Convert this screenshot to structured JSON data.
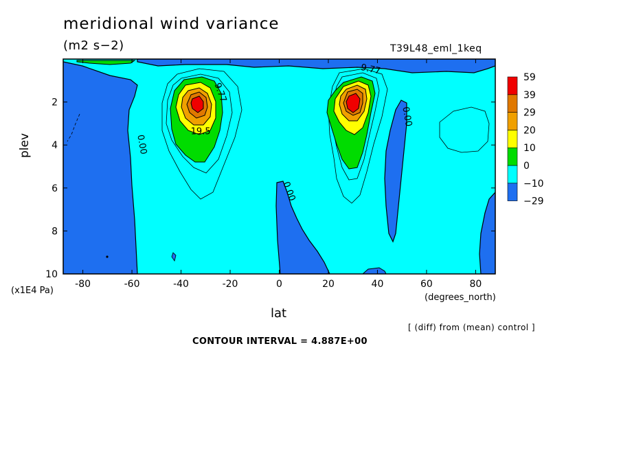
{
  "chart_data": {
    "type": "heatmap",
    "title": "meridional wind variance",
    "units": "(m2 s−2)",
    "run_label": "T39L48_eml_1keq",
    "xlabel": "lat",
    "x_unit_label": "(degrees_north)",
    "ylabel": "plev",
    "y_unit_label": "(x1E4 Pa)",
    "xlim": [
      -88,
      88
    ],
    "ylim": [
      10,
      0
    ],
    "x_ticks": [
      -80,
      -60,
      -40,
      -20,
      0,
      20,
      40,
      60,
      80
    ],
    "y_ticks": [
      2,
      4,
      6,
      8,
      10
    ],
    "colorbar": {
      "levels": [
        -29,
        -10,
        0,
        10,
        20,
        29,
        39,
        59
      ],
      "colors": [
        "#1e6ff0",
        "#00ffff",
        "#00dc00",
        "#ffff00",
        "#f0a000",
        "#e07800",
        "#f00000"
      ]
    },
    "contour_labels": [
      {
        "text": "9.77",
        "x": -25,
        "y": 1.6,
        "rot": 70
      },
      {
        "text": "19.5",
        "x": -32,
        "y": 3.5,
        "rot": 0
      },
      {
        "text": "9.77",
        "x": 37,
        "y": 0.6,
        "rot": 12
      },
      {
        "text": "0.00",
        "x": -57,
        "y": 4.0,
        "rot": 80
      },
      {
        "text": "0.00",
        "x": 3,
        "y": 6.2,
        "rot": 70
      },
      {
        "text": "0.00",
        "x": 51,
        "y": 2.7,
        "rot": 80
      }
    ],
    "features": [
      {
        "name": "SH jet variance maximum",
        "lat": -33,
        "plev": 2.2,
        "peak": 59
      },
      {
        "name": "NH jet variance maximum",
        "lat": 30,
        "plev": 2.3,
        "peak": 59
      }
    ],
    "footer_note": "[ (diff) from (mean) control ]",
    "contour_interval": "CONTOUR INTERVAL = 4.887E+00"
  }
}
